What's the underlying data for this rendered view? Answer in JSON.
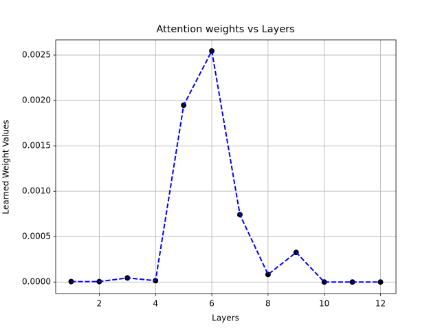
{
  "chart_data": {
    "type": "line",
    "title": "Attention weights vs Layers",
    "x_label": "Layers",
    "y_label": "Learned Weight Values",
    "x": [
      1,
      2,
      3,
      4,
      5,
      6,
      7,
      8,
      9,
      10,
      11,
      12
    ],
    "series": [
      {
        "color": "#0000ff",
        "marker_color": "#000000",
        "line_style": "dashed",
        "values": [
          5e-06,
          5e-06,
          4.5e-05,
          1.5e-05,
          0.001947,
          0.002545,
          0.000742,
          8.3e-05,
          0.000326,
          0.0,
          0.0,
          0.0
        ]
      }
    ],
    "xlim": [
      0.45,
      12.55
    ],
    "xticks": [
      2,
      4,
      6,
      8,
      10,
      12
    ],
    "ylim": [
      -0.000127,
      0.002667
    ],
    "yticks": [
      {
        "value": 0,
        "label": "0.0000"
      },
      {
        "value": 0.0005,
        "label": "0.0005"
      },
      {
        "value": 0.001,
        "label": "0.0010"
      },
      {
        "value": 0.0015,
        "label": "0.0015"
      },
      {
        "value": 0.002,
        "label": "0.0020"
      },
      {
        "value": 0.0025,
        "label": "0.0025"
      }
    ],
    "grid": true
  }
}
